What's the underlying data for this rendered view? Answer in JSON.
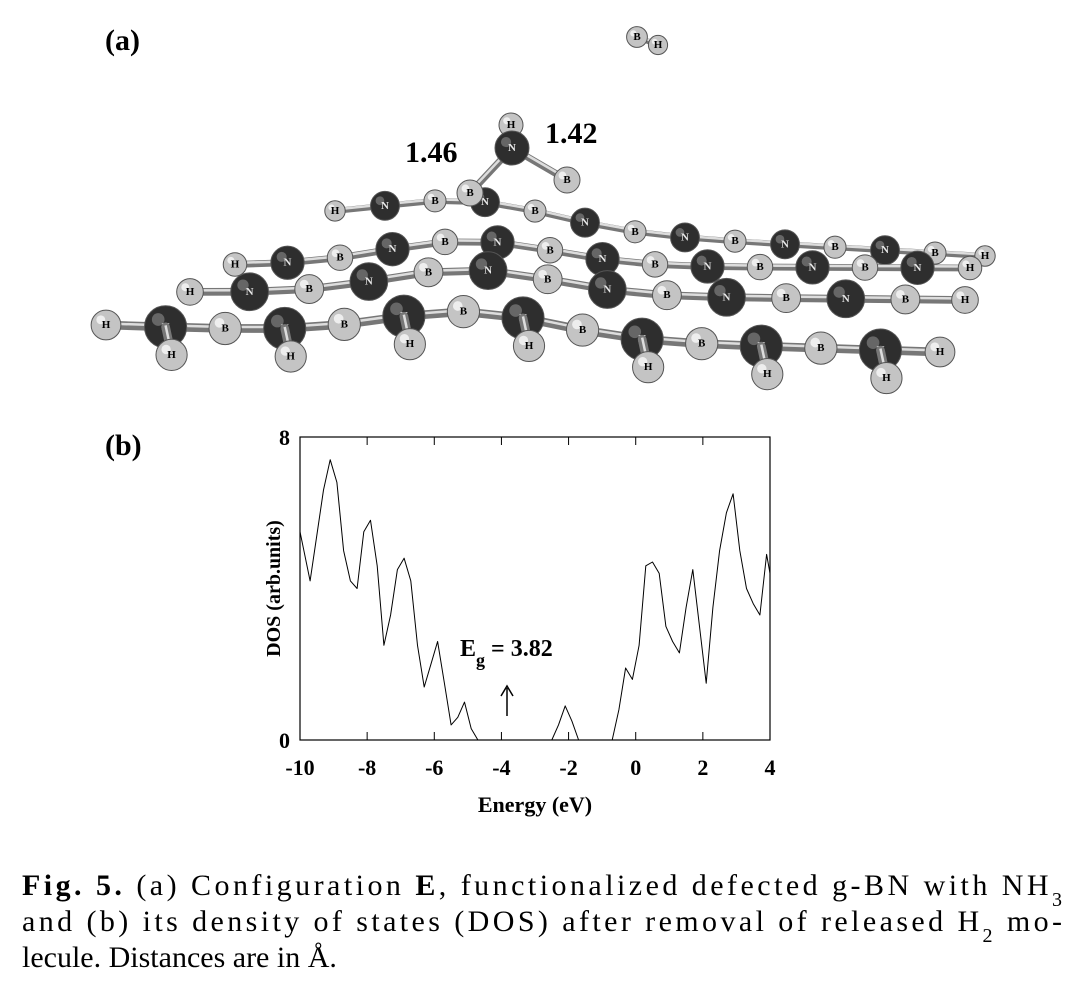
{
  "panel_a": {
    "label": "(a)",
    "distances": [
      1.46,
      1.42
    ],
    "atoms": [
      "B",
      "H",
      "H",
      "N",
      "B",
      "B",
      "H",
      "N",
      "B",
      "N",
      "B",
      "N",
      "B",
      "N",
      "B",
      "N",
      "B",
      "N",
      "B",
      "H",
      "H",
      "N",
      "B",
      "N",
      "B",
      "N",
      "B",
      "N",
      "B",
      "N",
      "B",
      "N",
      "B",
      "N",
      "H",
      "H",
      "N",
      "B",
      "N",
      "B",
      "N",
      "B",
      "N",
      "B",
      "N",
      "B",
      "N",
      "B",
      "H",
      "H",
      "N",
      "B",
      "N",
      "B",
      "N",
      "B",
      "N",
      "B",
      "N",
      "B",
      "N",
      "B",
      "N",
      "H",
      "H",
      "H",
      "H",
      "H",
      "H",
      "H",
      "H"
    ]
  },
  "chart_data": {
    "type": "line",
    "panel_label": "(b)",
    "xlabel": "Energy (eV)",
    "ylabel": "DOS (arb.units)",
    "x": [
      -10,
      -9.7,
      -9.5,
      -9.3,
      -9.1,
      -8.9,
      -8.7,
      -8.5,
      -8.3,
      -8.1,
      -7.9,
      -7.7,
      -7.5,
      -7.3,
      -7.1,
      -6.9,
      -6.7,
      -6.5,
      -6.3,
      -6.1,
      -5.9,
      -5.7,
      -5.5,
      -5.3,
      -5.1,
      -4.9,
      -4.7,
      -2.5,
      -2.3,
      -2.1,
      -1.9,
      -1.7,
      -0.7,
      -0.5,
      -0.3,
      -0.1,
      0.1,
      0.3,
      0.5,
      0.7,
      0.9,
      1.1,
      1.3,
      1.5,
      1.7,
      1.9,
      2.1,
      2.3,
      2.5,
      2.7,
      2.9,
      3.1,
      3.3,
      3.5,
      3.7,
      3.9,
      4
    ],
    "series": [
      {
        "color": "#000000",
        "values": [
          5.5,
          4.2,
          5.4,
          6.6,
          7.4,
          6.8,
          5.0,
          4.2,
          4.0,
          5.5,
          5.8,
          4.6,
          2.5,
          3.3,
          4.5,
          4.8,
          4.2,
          2.5,
          1.4,
          2.0,
          2.6,
          1.5,
          0.4,
          0.6,
          1.0,
          0.3,
          0,
          0,
          0.4,
          0.9,
          0.5,
          0,
          0,
          0.8,
          1.9,
          1.6,
          2.5,
          4.6,
          4.7,
          4.4,
          3.0,
          2.6,
          2.3,
          3.5,
          4.5,
          3.0,
          1.5,
          3.5,
          5.0,
          6.0,
          6.5,
          5.0,
          4.0,
          3.6,
          3.3,
          4.9,
          4.4
        ]
      }
    ],
    "xlim": [
      -10,
      4
    ],
    "ylim": [
      0,
      8
    ],
    "xticks": [
      -10,
      -8,
      -6,
      -4,
      -2,
      0,
      2,
      4
    ],
    "yticks": [
      0,
      8
    ],
    "annotation": {
      "text": "E",
      "subscript": "g",
      "suffix": " = 3.82"
    }
  },
  "caption": {
    "lines": [
      [
        {
          "text": "Fig. 5.",
          "bold": true
        },
        {
          "text": " (a) Configuration "
        },
        {
          "text": "E",
          "bold": true
        },
        {
          "text": ", functionalized defected g-BN with NH"
        },
        {
          "text": "3",
          "sub": true
        }
      ],
      [
        {
          "text": "and (b) its density of states (DOS) after removal of released H"
        },
        {
          "text": "2",
          "sub": true
        },
        {
          "text": " mo-"
        }
      ],
      [
        {
          "text": "lecule. Distances are in Å."
        }
      ]
    ]
  }
}
